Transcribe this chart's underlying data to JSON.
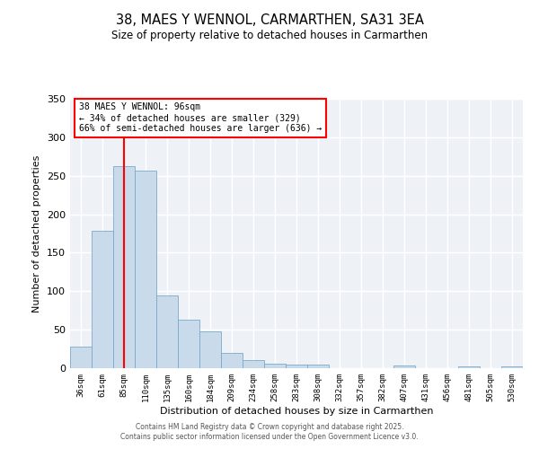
{
  "title": "38, MAES Y WENNOL, CARMARTHEN, SA31 3EA",
  "subtitle": "Size of property relative to detached houses in Carmarthen",
  "xlabel": "Distribution of detached houses by size in Carmarthen",
  "ylabel": "Number of detached properties",
  "bar_labels": [
    "36sqm",
    "61sqm",
    "85sqm",
    "110sqm",
    "135sqm",
    "160sqm",
    "184sqm",
    "209sqm",
    "234sqm",
    "258sqm",
    "283sqm",
    "308sqm",
    "332sqm",
    "357sqm",
    "382sqm",
    "407sqm",
    "431sqm",
    "456sqm",
    "481sqm",
    "505sqm",
    "530sqm"
  ],
  "bar_values": [
    28,
    178,
    263,
    257,
    95,
    63,
    48,
    20,
    11,
    6,
    5,
    5,
    0,
    0,
    0,
    3,
    0,
    0,
    2,
    0,
    2
  ],
  "bar_color": "#c9daea",
  "bar_edge_color": "#7aaac8",
  "vline_bar_index": 2,
  "vline_color": "red",
  "annotation_title": "38 MAES Y WENNOL: 96sqm",
  "annotation_line2": "← 34% of detached houses are smaller (329)",
  "annotation_line3": "66% of semi-detached houses are larger (636) →",
  "annotation_box_color": "white",
  "annotation_box_edge": "red",
  "ylim": [
    0,
    350
  ],
  "yticks": [
    0,
    50,
    100,
    150,
    200,
    250,
    300,
    350
  ],
  "bg_color": "#eef2f7",
  "footer1": "Contains HM Land Registry data © Crown copyright and database right 2025.",
  "footer2": "Contains public sector information licensed under the Open Government Licence v3.0."
}
